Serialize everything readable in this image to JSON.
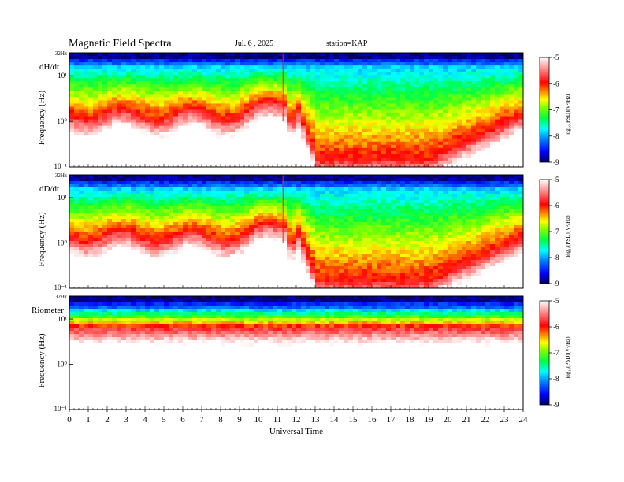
{
  "header": {
    "title": "Magnetic  Field  Spectra",
    "date": "Jul.  6  , 2025",
    "station": "station=KAP"
  },
  "colors": {
    "scale": [
      "#000080",
      "#0000ff",
      "#0080ff",
      "#00ffff",
      "#00ff40",
      "#80ff00",
      "#ffff00",
      "#ff8000",
      "#ff0000",
      "#ff6060",
      "#ffffff"
    ]
  },
  "chart_data": [
    {
      "type": "heatmap",
      "panel_label": "dH/dt",
      "ylabel": "Frequency  (Hz)",
      "ytick_labels": [
        "32Hz",
        "10¹",
        "10⁰",
        "10⁻¹"
      ],
      "ytick_values": [
        32,
        10,
        1,
        0.1
      ],
      "xlim": [
        0,
        24
      ],
      "ylim": [
        0.1,
        32
      ],
      "y_scale": "log",
      "colorbar": {
        "label": "log₁₀(PSD)(V²/Hz)",
        "ticks": [
          "-5",
          "-6",
          "-7",
          "-8",
          "-9"
        ],
        "range": [
          -9,
          -5
        ]
      },
      "features": [
        {
          "name": "vertical spike",
          "x": 11.3
        }
      ]
    },
    {
      "type": "heatmap",
      "panel_label": "dD/dt",
      "ylabel": "Frequency  (Hz)",
      "ytick_labels": [
        "32Hz",
        "10¹",
        "10⁰",
        "10⁻¹"
      ],
      "ytick_values": [
        32,
        10,
        1,
        0.1
      ],
      "xlim": [
        0,
        24
      ],
      "ylim": [
        0.1,
        32
      ],
      "y_scale": "log",
      "colorbar": {
        "label": "log₁₀(PSD)(V²/Hz)",
        "ticks": [
          "-5",
          "-6",
          "-7",
          "-8",
          "-9"
        ],
        "range": [
          -9,
          -5
        ]
      },
      "features": [
        {
          "name": "vertical spike",
          "x": 11.3
        }
      ]
    },
    {
      "type": "heatmap",
      "panel_label": "Riometer",
      "ylabel": "Frequency  (Hz)",
      "ytick_labels": [
        "32Hz",
        "10¹",
        "10⁰",
        "10⁻¹"
      ],
      "ytick_values": [
        32,
        10,
        1,
        0.1
      ],
      "xlim": [
        0,
        24
      ],
      "ylim": [
        0.1,
        32
      ],
      "y_scale": "log",
      "xlabel": "Universal Time",
      "xtick_labels": [
        "0",
        "1",
        "2",
        "3",
        "4",
        "5",
        "6",
        "7",
        "8",
        "9",
        "10",
        "11",
        "12",
        "13",
        "14",
        "15",
        "16",
        "17",
        "18",
        "19",
        "20",
        "21",
        "22",
        "23",
        "24"
      ],
      "colorbar": {
        "label": "log₁₀(PSD)(V²/Hz)",
        "ticks": [
          "-5",
          "-6",
          "-7",
          "-8",
          "-9"
        ],
        "range": [
          -9,
          -5
        ]
      }
    }
  ]
}
